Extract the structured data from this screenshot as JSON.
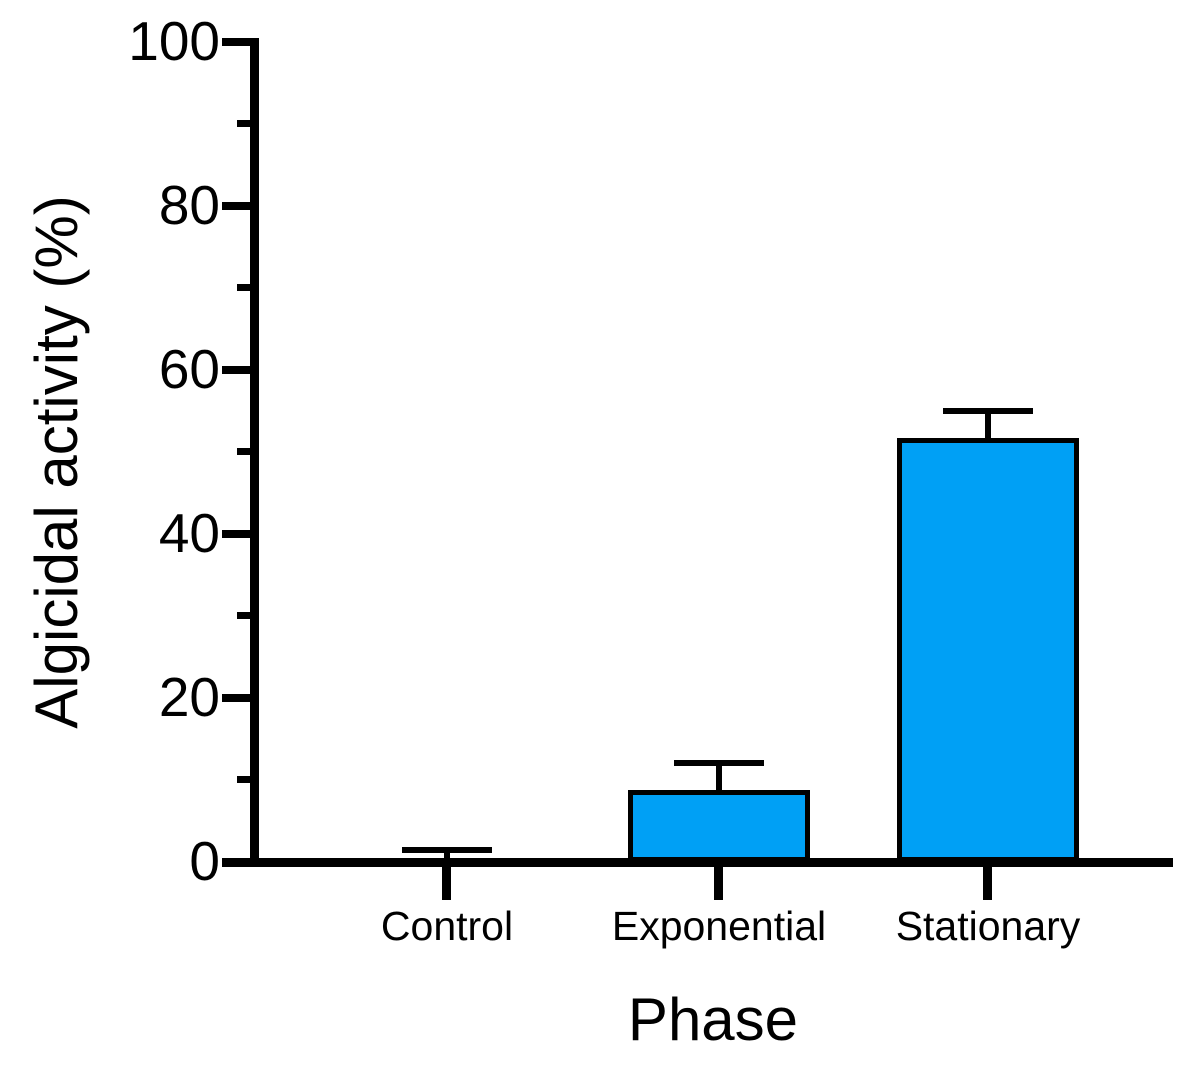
{
  "chart_data": {
    "type": "bar",
    "title": "",
    "xlabel": "Phase",
    "ylabel": "Algicidal activity (%)",
    "categories": [
      "Control",
      "Exponential",
      "Stationary"
    ],
    "values": [
      0,
      8.8,
      51.7
    ],
    "errors": [
      1.5,
      3.3,
      3.3
    ],
    "ylim": [
      0,
      100
    ],
    "yticks": [
      0,
      20,
      40,
      60,
      80,
      100
    ],
    "minor_yticks": [
      10,
      30,
      50,
      70,
      90
    ],
    "grid": false,
    "legend": "none",
    "colors": {
      "bar_fill": "#00A0F5",
      "bar_border": "#000000",
      "axis": "#000000",
      "text": "#000000",
      "background": "#ffffff"
    }
  }
}
